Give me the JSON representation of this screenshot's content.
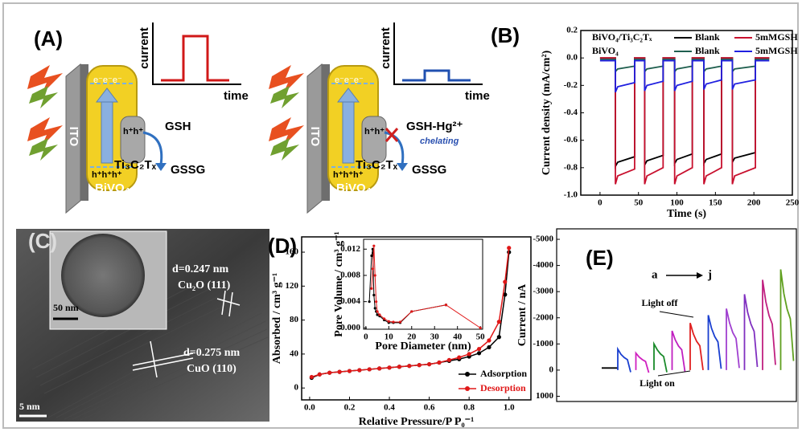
{
  "panel_labels": [
    "(A)",
    "(B)",
    "(C)",
    "(D)",
    "(E)"
  ],
  "schematics": [
    {
      "graph_y": "current",
      "graph_x": "time",
      "electrode": "ITO",
      "electrons": "e⁻e⁻e⁻",
      "holes_top": "h⁺h⁺",
      "holes_bottom": "h⁺h⁺h⁺",
      "cocatalyst": "Ti₃C₂Tₓ",
      "photoanode": "BiVO₄",
      "reactant": "GSH",
      "product": "GSSG"
    },
    {
      "graph_y": "current",
      "graph_x": "time",
      "electrode": "ITO",
      "electrons": "e⁻e⁻e⁻",
      "holes_top": "h⁺h⁺",
      "holes_bottom": "h⁺h⁺h⁺",
      "cocatalyst": "Ti₃C₂Tₓ",
      "photoanode": "BiVO₄",
      "reactant": "GSH-Hg²⁺",
      "note": "chelating",
      "product": "GSSG"
    }
  ],
  "micrograph": {
    "lattice_1": "d=0.247 nm",
    "phase_1": "Cu₂O (111)",
    "lattice_2": "d=0.275 nm",
    "phase_2": "CuO (110)",
    "inset_scale": "50 nm",
    "scale": "5 nm"
  },
  "chart_data": [
    {
      "type": "line",
      "x_label": "Time (s)",
      "y_label": "Current density (mA/cm²)",
      "x": [
        0,
        20,
        20,
        23,
        45,
        45,
        58,
        58,
        61,
        82,
        82,
        97,
        97,
        100,
        120,
        120,
        135,
        135,
        138,
        158,
        158,
        172,
        172,
        175,
        202,
        202,
        220
      ],
      "xlim": [
        -25,
        250
      ],
      "xticks": [
        0,
        50,
        100,
        150,
        200,
        250
      ],
      "ylim": [
        -1.0,
        0.2
      ],
      "yticks": [
        {
          "value": -1.0,
          "label": "-1.0"
        },
        -0.8,
        -0.6,
        -0.4,
        -0.2,
        {
          "value": 0,
          "label": "0.0"
        },
        0.2
      ],
      "legend_groups": [
        "BiVO₄/Ti₃C₂Tₓ",
        "BiVO₄"
      ],
      "series": [
        {
          "name": "Blank",
          "color": "#000000",
          "values": [
            0,
            0,
            -0.79,
            -0.76,
            -0.72,
            0,
            0,
            -0.78,
            -0.75,
            -0.71,
            0,
            0,
            -0.77,
            -0.74,
            -0.7,
            0,
            0,
            -0.77,
            -0.74,
            -0.7,
            0,
            0,
            -0.76,
            -0.73,
            -0.69,
            0,
            0
          ]
        },
        {
          "name": "5mMGSH",
          "color": "#c8102e",
          "values": [
            0,
            0,
            -0.92,
            -0.86,
            -0.81,
            0,
            0,
            -0.92,
            -0.86,
            -0.8,
            0,
            0,
            -0.92,
            -0.86,
            -0.8,
            0,
            0,
            -0.92,
            -0.86,
            -0.8,
            0,
            0,
            -0.92,
            -0.86,
            -0.8,
            0,
            0
          ]
        },
        {
          "name": "Blank",
          "color": "#1f5f4f",
          "values": [
            -0.01,
            -0.01,
            -0.1,
            -0.08,
            -0.06,
            -0.01,
            -0.01,
            -0.1,
            -0.08,
            -0.06,
            -0.01,
            -0.01,
            -0.1,
            -0.08,
            -0.06,
            -0.01,
            -0.01,
            -0.1,
            -0.08,
            -0.06,
            -0.01,
            -0.01,
            -0.1,
            -0.08,
            -0.06,
            -0.01,
            -0.01
          ]
        },
        {
          "name": "5mMGSH",
          "color": "#2020e0",
          "values": [
            -0.02,
            -0.02,
            -0.25,
            -0.21,
            -0.18,
            -0.02,
            -0.02,
            -0.24,
            -0.2,
            -0.17,
            -0.02,
            -0.02,
            -0.24,
            -0.2,
            -0.17,
            -0.02,
            -0.02,
            -0.23,
            -0.19,
            -0.16,
            -0.02,
            -0.02,
            -0.23,
            -0.19,
            -0.16,
            -0.02,
            -0.02
          ]
        }
      ]
    },
    {
      "type": "line",
      "x_label": "Relative Pressure/P P₀⁻¹",
      "y_label": "Absorbed / cm³ g⁻¹",
      "x": [
        0.01,
        0.05,
        0.1,
        0.15,
        0.2,
        0.25,
        0.3,
        0.35,
        0.4,
        0.45,
        0.5,
        0.55,
        0.6,
        0.65,
        0.7,
        0.75,
        0.8,
        0.85,
        0.9,
        0.95,
        0.98,
        1.0
      ],
      "xlim": [
        -0.04,
        1.11
      ],
      "xticks": [
        {
          "value": 0,
          "label": "0.0"
        },
        0.2,
        0.4,
        0.6,
        0.8,
        {
          "value": 1,
          "label": "1.0"
        }
      ],
      "ylim": [
        -14,
        178
      ],
      "yticks": [
        0,
        40,
        80,
        120,
        160
      ],
      "legend": "lower right",
      "series": [
        {
          "name": "Adsorption",
          "color": "#000000",
          "values": [
            12,
            16,
            18,
            19,
            20,
            21,
            22,
            23,
            24,
            25,
            26,
            27,
            28,
            30,
            32,
            34,
            37,
            41,
            48,
            60,
            110,
            160
          ]
        },
        {
          "name": "Desorption",
          "color": "#e01818",
          "values": [
            13,
            16,
            18,
            19,
            20,
            21,
            22,
            23,
            24,
            25,
            26,
            27,
            28,
            30,
            33,
            36,
            40,
            46,
            56,
            78,
            125,
            165
          ]
        }
      ]
    },
    {
      "type": "line",
      "x_label": "Pore Diameter (nm)",
      "y_label": "Pore Volume / cm³ g⁻¹",
      "x": [
        1.5,
        2.5,
        3,
        3.5,
        4,
        4.5,
        5,
        6,
        8,
        10,
        12,
        15,
        20,
        35,
        50
      ],
      "xlim": [
        -1,
        51
      ],
      "xticks": [
        0,
        10,
        20,
        30,
        40,
        50
      ],
      "ylim": [
        -0.0002,
        0.0135
      ],
      "yticks": [
        {
          "value": 0,
          "label": "0.000"
        },
        {
          "value": 0.004,
          "label": "0.004"
        },
        {
          "value": 0.008,
          "label": "0.008"
        },
        {
          "value": 0.012,
          "label": "0.012"
        }
      ],
      "series": [
        {
          "color": "#000000",
          "values": [
            0.004,
            0.011,
            0.012,
            0.005,
            0.003,
            0.0025,
            0.002,
            0.0018,
            0.0012,
            0.0008,
            0.0008,
            0.0008,
            0.0025,
            0.0035,
            null
          ]
        },
        {
          "color": "#e01818",
          "values": [
            null,
            0.006,
            0.009,
            0.0125,
            0.008,
            0.004,
            0.0025,
            0.002,
            0.0014,
            0.001,
            0.0009,
            0.0009,
            0.0025,
            0.0035,
            0
          ]
        }
      ]
    },
    {
      "type": "transient",
      "y_label": "Current / nA",
      "ylim": [
        -5400,
        1200
      ],
      "invert_y": true,
      "yticks": [
        -5000,
        -4000,
        -3000,
        -2000,
        -1000,
        0,
        1000
      ],
      "annotations": {
        "start": "a",
        "end": "j",
        "light_off": "Light off",
        "light_on": "Light on"
      },
      "series": [
        {
          "color": "#000000",
          "values": [
            -80,
            -80,
            -80,
            -80
          ]
        },
        {
          "color": "#1a3fd0",
          "values": [
            0,
            -800,
            -600,
            -480,
            -400,
            80
          ]
        },
        {
          "color": "#d020c0",
          "values": [
            0,
            -650,
            -500,
            -400,
            -330,
            100
          ]
        },
        {
          "color": "#1a8a2a",
          "values": [
            0,
            -1000,
            -780,
            -620,
            -520,
            80
          ]
        },
        {
          "color": "#c020c0",
          "values": [
            0,
            -1500,
            -1150,
            -920,
            -780,
            60
          ]
        },
        {
          "color": "#e02020",
          "values": [
            0,
            -1800,
            -1380,
            -1100,
            -930,
            0
          ]
        },
        {
          "color": "#1a3fd0",
          "values": [
            0,
            -2100,
            -1600,
            -1280,
            -1080,
            -50
          ]
        },
        {
          "color": "#a040d0",
          "values": [
            0,
            -2350,
            -1800,
            -1430,
            -1210,
            -80
          ]
        },
        {
          "color": "#8030c0",
          "values": [
            0,
            -2900,
            -2200,
            -1760,
            -1480,
            -120
          ]
        },
        {
          "color": "#c02080",
          "values": [
            0,
            -3450,
            -2620,
            -2090,
            -1760,
            -200
          ]
        },
        {
          "color": "#60a020",
          "values": [
            0,
            -3850,
            -2920,
            -2330,
            -1960,
            -350
          ]
        }
      ]
    }
  ]
}
